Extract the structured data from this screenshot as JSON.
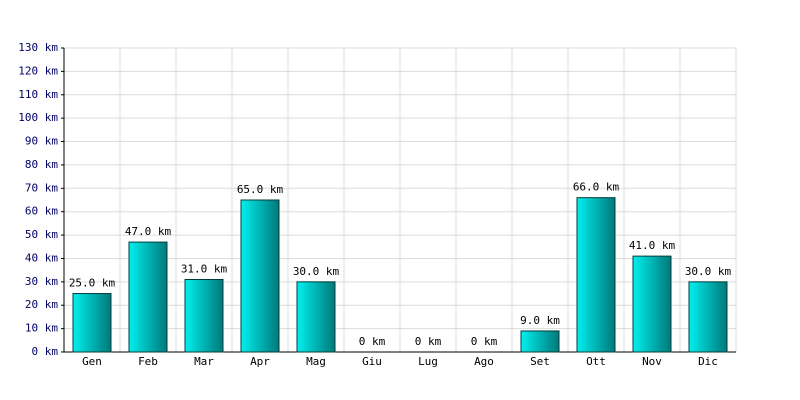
{
  "chart_data": {
    "type": "bar",
    "categories": [
      "Gen",
      "Feb",
      "Mar",
      "Apr",
      "Mag",
      "Giu",
      "Lug",
      "Ago",
      "Set",
      "Ott",
      "Nov",
      "Dic"
    ],
    "values": [
      25,
      47,
      31,
      65,
      30,
      0,
      0,
      0,
      9,
      66,
      41,
      30
    ],
    "value_labels": [
      "25.0 km",
      "47.0 km",
      "31.0 km",
      "65.0 km",
      "30.0 km",
      "0 km",
      "0 km",
      "0 km",
      "9.0 km",
      "66.0 km",
      "41.0 km",
      "30.0 km"
    ],
    "color": "#00c8c8",
    "ylim": [
      0,
      130
    ],
    "yticks": [
      {
        "value": 0,
        "label": "0 km"
      },
      {
        "value": 10,
        "label": "10 km"
      },
      {
        "value": 20,
        "label": "20 km"
      },
      {
        "value": 30,
        "label": "30 km"
      },
      {
        "value": 40,
        "label": "40 km"
      },
      {
        "value": 50,
        "label": "50 km"
      },
      {
        "value": 60,
        "label": "60 km"
      },
      {
        "value": 70,
        "label": "70 km"
      },
      {
        "value": 80,
        "label": "80 km"
      },
      {
        "value": 90,
        "label": "90 km"
      },
      {
        "value": 100,
        "label": "100 km"
      },
      {
        "value": 110,
        "label": "110 km"
      },
      {
        "value": 120,
        "label": "120 km"
      },
      {
        "value": 130,
        "label": "130 km"
      }
    ],
    "grid": true
  }
}
